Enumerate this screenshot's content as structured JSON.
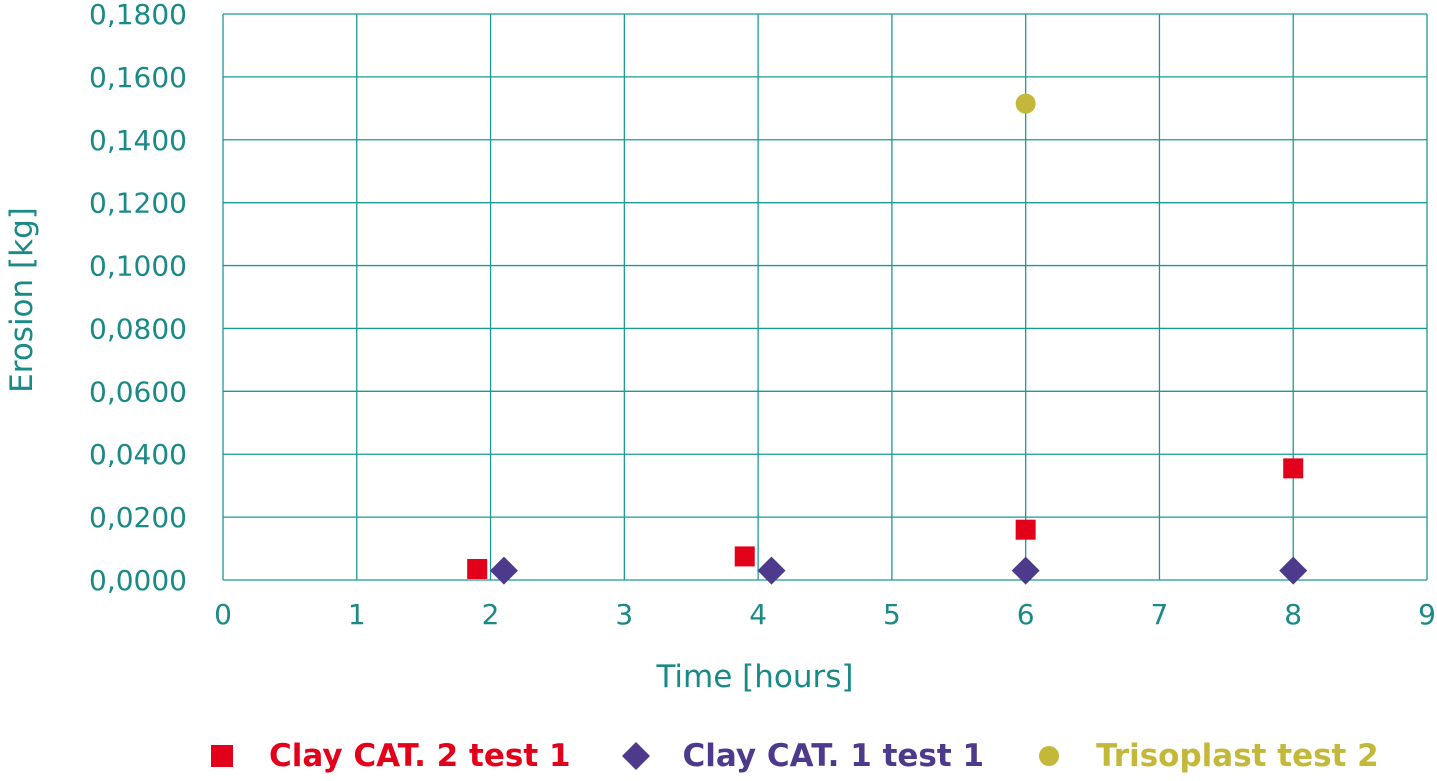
{
  "chart_data": {
    "type": "scatter",
    "title": "",
    "xlabel": "Time [hours]",
    "ylabel": "Erosion [kg]",
    "xlim": [
      0,
      9
    ],
    "ylim": [
      0,
      0.18
    ],
    "x_ticks": [
      0,
      1,
      2,
      3,
      4,
      5,
      6,
      7,
      8,
      9
    ],
    "x_tick_labels": [
      "0",
      "1",
      "2",
      "3",
      "4",
      "5",
      "6",
      "7",
      "8",
      "9"
    ],
    "y_ticks": [
      0,
      0.02,
      0.04,
      0.06,
      0.08,
      0.1,
      0.12,
      0.14,
      0.16,
      0.18
    ],
    "y_tick_labels": [
      "0,0000",
      "0,0200",
      "0,0400",
      "0,0600",
      "0,0800",
      "0,1000",
      "0,1200",
      "0,1400",
      "0,1600",
      "0,1800"
    ],
    "grid": true,
    "legend_position": "bottom",
    "colors": {
      "grid": "#1a9a95",
      "axis_text": "#1a8a86"
    },
    "series": [
      {
        "name": "Clay CAT. 2 test 1",
        "marker": "square",
        "color": "#e2001a",
        "points": [
          {
            "x": 1.9,
            "y": 0.0035
          },
          {
            "x": 3.9,
            "y": 0.0075
          },
          {
            "x": 6.0,
            "y": 0.016
          },
          {
            "x": 8.0,
            "y": 0.0355
          }
        ]
      },
      {
        "name": "Clay CAT. 1 test 1",
        "marker": "diamond",
        "color": "#4e3a8c",
        "points": [
          {
            "x": 2.1,
            "y": 0.003
          },
          {
            "x": 4.1,
            "y": 0.003
          },
          {
            "x": 6.0,
            "y": 0.003
          },
          {
            "x": 8.0,
            "y": 0.003
          }
        ]
      },
      {
        "name": "Trisoplast test 2",
        "marker": "circle",
        "color": "#c3b83a",
        "points": [
          {
            "x": 6.0,
            "y": 0.1515
          }
        ]
      }
    ]
  }
}
